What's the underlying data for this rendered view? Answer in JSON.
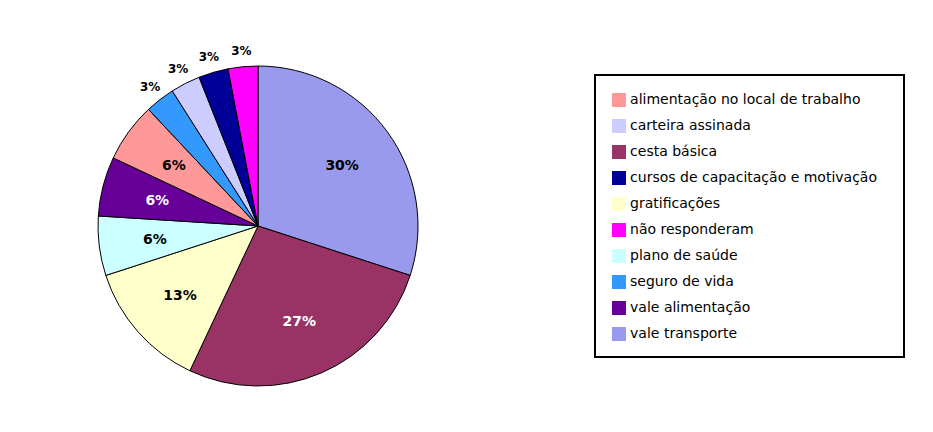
{
  "chart_data": {
    "type": "pie",
    "categories": [
      "vale transporte",
      "cesta básica",
      "gratificações",
      "plano de saúde",
      "vale alimentação",
      "alimentação no local de trabalho",
      "seguro de vida",
      "carteira assinada",
      "cursos de capacitação e motivação",
      "não responderam"
    ],
    "values": [
      30,
      27,
      13,
      6,
      6,
      6,
      3,
      3,
      3,
      3
    ],
    "value_labels": [
      "30%",
      "27%",
      "13%",
      "6%",
      "6%",
      "6%",
      "3%",
      "3%",
      "3%",
      "3%"
    ],
    "colors": [
      "#9999EE",
      "#993366",
      "#FFFFCC",
      "#CCFFFF",
      "#660099",
      "#FF9999",
      "#3399FF",
      "#CCCCFF",
      "#000099",
      "#FF00FF"
    ],
    "data_labels": true,
    "legend": "right"
  }
}
